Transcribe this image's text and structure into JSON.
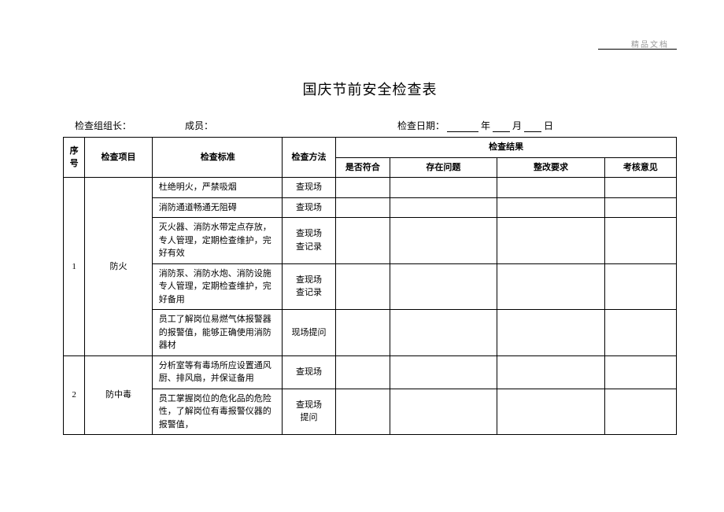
{
  "header_mark": "精品文档",
  "title": "国庆节前安全检查表",
  "info": {
    "leader_label": "检查组组长：",
    "member_label": "成员：",
    "date_label": "检查日期：",
    "year_label": "年",
    "month_label": "月",
    "day_label": "日"
  },
  "headers": {
    "seq": "序号",
    "item": "检查项目",
    "standard": "检查标准",
    "method": "检查方法",
    "result_group": "检查结果",
    "conform": "是否符合",
    "problem": "存在问题",
    "rectify": "整改要求",
    "opinion": "考核意见"
  },
  "rows": [
    {
      "seq": "1",
      "item": "防火",
      "subrows": [
        {
          "standard": "杜绝明火，严禁吸烟",
          "method": "查现场"
        },
        {
          "standard": "消防通道畅通无阻碍",
          "method": "查现场"
        },
        {
          "standard": "灭火器、消防水带定点存放，专人管理，定期检查维护，完好有效",
          "method": "查现场\n查记录"
        },
        {
          "standard": "消防泵、消防水炮、消防设施专人管理，定期检查维护，完好备用",
          "method": "查现场\n查记录"
        },
        {
          "standard": "员工了解岗位易燃气体报警器的报警值，能够正确使用消防器材",
          "method": "现场提问"
        }
      ]
    },
    {
      "seq": "2",
      "item": "防中毒",
      "subrows": [
        {
          "standard": "分析室等有毒场所应设置通风厨、排风扇，并保证备用",
          "method": "查现场"
        },
        {
          "standard": "员工掌握岗位的危化品的危险性，了解岗位有毒报警仪器的报警值，",
          "method": "查现场\n提问"
        }
      ]
    }
  ]
}
